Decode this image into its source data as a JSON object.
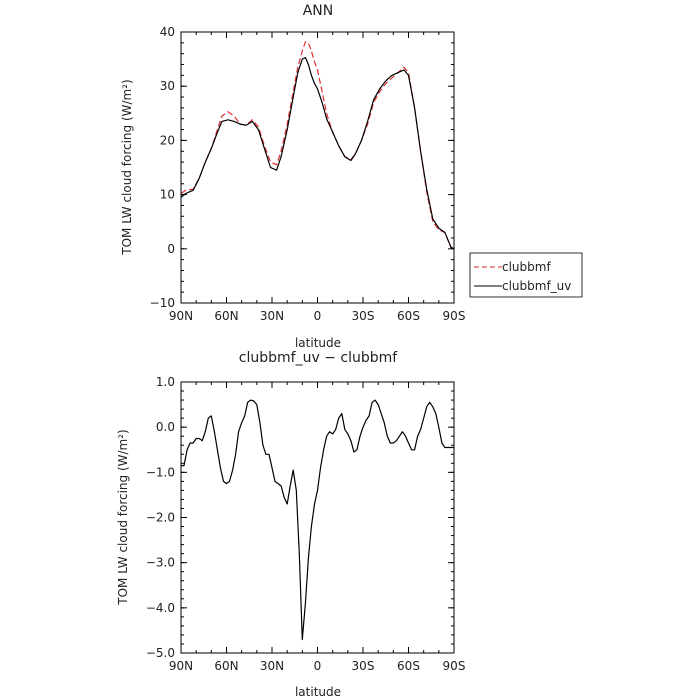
{
  "chart_data": [
    {
      "type": "line",
      "title": "ANN",
      "xlabel": "latitude",
      "ylabel": "TOM LW cloud forcing (W/m²)",
      "xlim": [
        -90,
        90
      ],
      "ylim": [
        -10,
        40
      ],
      "xticks": [
        -90,
        -60,
        -30,
        0,
        30,
        60,
        90
      ],
      "xtick_labels": [
        "90N",
        "60N",
        "30N",
        "0",
        "30S",
        "60S",
        "90S"
      ],
      "yticks": [
        -10,
        0,
        10,
        20,
        30,
        40
      ],
      "ytick_labels": [
        "−10",
        "0",
        "10",
        "20",
        "30",
        "40"
      ],
      "legend": {
        "position": "right"
      },
      "series": [
        {
          "name": "clubbmf",
          "color": "#e03030",
          "dash": "dashed",
          "x": [
            -90,
            -87,
            -82,
            -78,
            -74,
            -70,
            -66,
            -63,
            -59,
            -55,
            -51,
            -47,
            -43,
            -39,
            -35,
            -31,
            -27,
            -24,
            -20,
            -16,
            -13,
            -10,
            -8,
            -6,
            -4,
            -2,
            0,
            3,
            6,
            10,
            14,
            18,
            22,
            25,
            29,
            33,
            37,
            41,
            45,
            49,
            53,
            57,
            60,
            64,
            68,
            72,
            76,
            80,
            84,
            88,
            90
          ],
          "y": [
            10.2,
            10.8,
            11.0,
            13.0,
            16.0,
            18.5,
            22.0,
            24.5,
            25.3,
            24.5,
            23.0,
            22.8,
            23.8,
            22.5,
            19.0,
            16.0,
            15.5,
            18.0,
            23.0,
            29.0,
            33.5,
            36.5,
            38.2,
            38.0,
            36.5,
            34.5,
            33.0,
            29.0,
            25.0,
            21.5,
            19.0,
            17.0,
            16.5,
            17.5,
            20.0,
            23.0,
            27.0,
            29.0,
            30.5,
            31.5,
            32.5,
            33.5,
            32.5,
            26.0,
            18.0,
            10.5,
            5.0,
            3.5,
            3.0,
            0.2,
            0
          ]
        },
        {
          "name": "clubbmf_uv",
          "color": "#000000",
          "dash": "solid",
          "x": [
            -90,
            -87,
            -82,
            -78,
            -74,
            -70,
            -66,
            -63,
            -59,
            -55,
            -51,
            -47,
            -43,
            -39,
            -35,
            -31,
            -27,
            -24,
            -20,
            -16,
            -13,
            -10,
            -8,
            -6,
            -4,
            -2,
            0,
            3,
            6,
            10,
            14,
            18,
            22,
            25,
            29,
            33,
            37,
            41,
            45,
            49,
            53,
            57,
            60,
            64,
            68,
            72,
            76,
            80,
            84,
            88,
            90
          ],
          "y": [
            9.5,
            10.2,
            10.8,
            13.0,
            16.0,
            18.5,
            21.5,
            23.5,
            23.8,
            23.5,
            23.0,
            22.8,
            23.5,
            22.0,
            18.5,
            15.0,
            14.5,
            17.0,
            22.0,
            28.0,
            32.5,
            35.0,
            35.3,
            34.0,
            32.0,
            30.5,
            29.5,
            27.0,
            24.0,
            21.5,
            19.0,
            17.0,
            16.3,
            17.5,
            20.0,
            23.5,
            27.5,
            29.5,
            31.0,
            32.0,
            32.5,
            33.0,
            32.0,
            26.0,
            18.0,
            11.0,
            5.5,
            3.8,
            3.0,
            0.3,
            0
          ]
        }
      ]
    },
    {
      "type": "line",
      "title": "clubbmf_uv − clubbmf",
      "xlabel": "latitude",
      "ylabel": "TOM LW cloud forcing (W/m²)",
      "xlim": [
        -90,
        90
      ],
      "ylim": [
        -5,
        1
      ],
      "xticks": [
        -90,
        -60,
        -30,
        0,
        30,
        60,
        90
      ],
      "xtick_labels": [
        "90N",
        "60N",
        "30N",
        "0",
        "30S",
        "60S",
        "90S"
      ],
      "yticks": [
        -5,
        -4,
        -3,
        -2,
        -1,
        0,
        1
      ],
      "ytick_labels": [
        "−5.0",
        "−4.0",
        "−3.0",
        "−2.0",
        "−1.0",
        "0.0",
        "1.0"
      ],
      "series": [
        {
          "color": "#000000",
          "dash": "solid",
          "x": [
            -90,
            -88,
            -86,
            -84,
            -82,
            -80,
            -78,
            -76,
            -74,
            -72,
            -70,
            -68,
            -66,
            -64,
            -62,
            -60,
            -58,
            -56,
            -54,
            -52,
            -50,
            -48,
            -46,
            -44,
            -42,
            -40,
            -38,
            -36,
            -34,
            -32,
            -30,
            -28,
            -26,
            -24,
            -22,
            -20,
            -18,
            -16,
            -14,
            -12,
            -10,
            -8,
            -6,
            -4,
            -2,
            0,
            2,
            4,
            6,
            8,
            10,
            12,
            14,
            16,
            18,
            20,
            22,
            24,
            26,
            28,
            30,
            32,
            34,
            36,
            38,
            40,
            42,
            44,
            46,
            48,
            50,
            52,
            54,
            56,
            58,
            60,
            62,
            64,
            66,
            68,
            70,
            72,
            74,
            76,
            78,
            80,
            82,
            84,
            86,
            88,
            90
          ],
          "y": [
            -0.85,
            -0.85,
            -0.5,
            -0.35,
            -0.35,
            -0.25,
            -0.25,
            -0.3,
            -0.1,
            0.2,
            0.25,
            -0.1,
            -0.5,
            -0.9,
            -1.2,
            -1.25,
            -1.2,
            -0.95,
            -0.6,
            -0.1,
            0.1,
            0.25,
            0.55,
            0.6,
            0.58,
            0.5,
            0.1,
            -0.4,
            -0.6,
            -0.6,
            -0.9,
            -1.2,
            -1.25,
            -1.3,
            -1.55,
            -1.7,
            -1.3,
            -0.95,
            -1.4,
            -2.8,
            -4.7,
            -3.9,
            -2.9,
            -2.2,
            -1.7,
            -1.4,
            -0.9,
            -0.5,
            -0.2,
            -0.1,
            -0.15,
            -0.05,
            0.2,
            0.3,
            -0.05,
            -0.15,
            -0.3,
            -0.55,
            -0.5,
            -0.2,
            0.0,
            0.15,
            0.25,
            0.55,
            0.6,
            0.5,
            0.3,
            0.1,
            -0.2,
            -0.35,
            -0.35,
            -0.3,
            -0.2,
            -0.1,
            -0.2,
            -0.35,
            -0.5,
            -0.5,
            -0.2,
            -0.05,
            0.2,
            0.45,
            0.55,
            0.45,
            0.3,
            0.0,
            -0.35,
            -0.45,
            -0.45,
            -0.45,
            -0.45
          ]
        }
      ]
    }
  ]
}
